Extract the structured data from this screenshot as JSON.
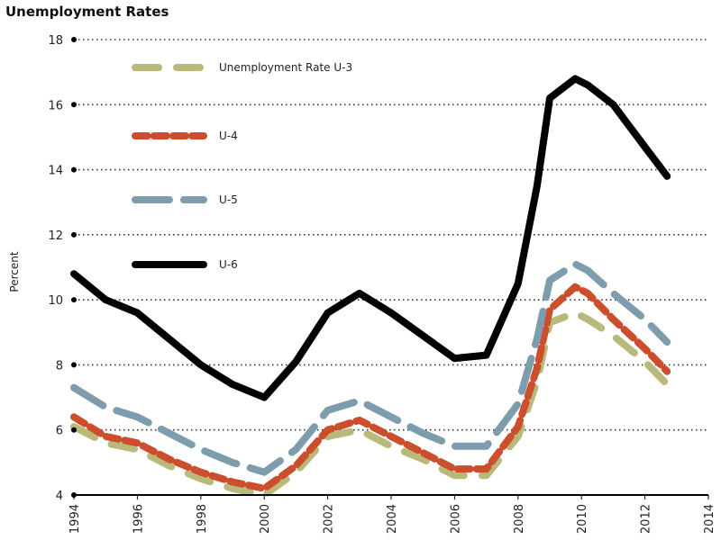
{
  "chart_data": {
    "type": "line",
    "title": "Unemployment Rates",
    "xlabel": "",
    "ylabel": "Percent",
    "xlim": [
      1994,
      2014
    ],
    "ylim": [
      4,
      18
    ],
    "x_ticks": [
      "1994",
      "1996",
      "1998",
      "2000",
      "2002",
      "2004",
      "2006",
      "2008",
      "2010",
      "2012",
      "2014"
    ],
    "y_ticks": [
      "4",
      "6",
      "8",
      "10",
      "12",
      "14",
      "16",
      "18"
    ],
    "grid": "horizontal-dotted",
    "legend_position": "top-left",
    "series": [
      {
        "name": "Unemployment Rate U-3",
        "color": "#b9b97c",
        "dash": "26,20",
        "x": [
          1994,
          1995,
          1996,
          1997,
          1998,
          1999,
          2000,
          2001,
          2002,
          2003,
          2004,
          2005,
          2006,
          2007,
          2008,
          2008.6,
          2009,
          2009.8,
          2010.2,
          2011,
          2012,
          2012.7
        ],
        "y": [
          6.1,
          5.6,
          5.4,
          4.9,
          4.5,
          4.2,
          4.0,
          4.7,
          5.8,
          6.0,
          5.5,
          5.1,
          4.6,
          4.6,
          5.8,
          7.5,
          9.3,
          9.6,
          9.4,
          8.9,
          8.1,
          7.4
        ]
      },
      {
        "name": "U-4",
        "color": "#cc4e2c",
        "dash": "14,7",
        "x": [
          1994,
          1995,
          1996,
          1997,
          1998,
          1999,
          2000,
          2001,
          2002,
          2003,
          2004,
          2005,
          2006,
          2007,
          2008,
          2008.6,
          2009,
          2009.8,
          2010.2,
          2011,
          2012,
          2012.7
        ],
        "y": [
          6.4,
          5.8,
          5.6,
          5.1,
          4.7,
          4.4,
          4.2,
          4.9,
          6.0,
          6.3,
          5.8,
          5.3,
          4.8,
          4.8,
          6.1,
          7.9,
          9.7,
          10.4,
          10.2,
          9.4,
          8.5,
          7.8
        ]
      },
      {
        "name": "U-5",
        "color": "#7d9dad",
        "dash": "38,16",
        "x": [
          1994,
          1995,
          1996,
          1997,
          1998,
          1999,
          2000,
          2001,
          2002,
          2003,
          2004,
          2005,
          2006,
          2007,
          2008,
          2008.6,
          2009,
          2009.8,
          2010.2,
          2011,
          2012,
          2012.7
        ],
        "y": [
          7.3,
          6.7,
          6.4,
          5.9,
          5.4,
          5.0,
          4.7,
          5.4,
          6.6,
          6.9,
          6.4,
          5.9,
          5.5,
          5.5,
          6.8,
          8.8,
          10.6,
          11.1,
          10.9,
          10.2,
          9.4,
          8.7
        ]
      },
      {
        "name": "U-6",
        "color": "#000000",
        "dash": "",
        "x": [
          1994,
          1995,
          1996,
          1997,
          1998,
          1999,
          2000,
          2001,
          2002,
          2003,
          2004,
          2005,
          2006,
          2007,
          2008,
          2008.6,
          2009,
          2009.8,
          2010.2,
          2011,
          2012,
          2012.7
        ],
        "y": [
          10.8,
          10.0,
          9.6,
          8.8,
          8.0,
          7.4,
          7.0,
          8.1,
          9.6,
          10.2,
          9.6,
          8.9,
          8.2,
          8.3,
          10.5,
          13.5,
          16.2,
          16.8,
          16.6,
          16.0,
          14.7,
          13.8
        ]
      }
    ]
  }
}
